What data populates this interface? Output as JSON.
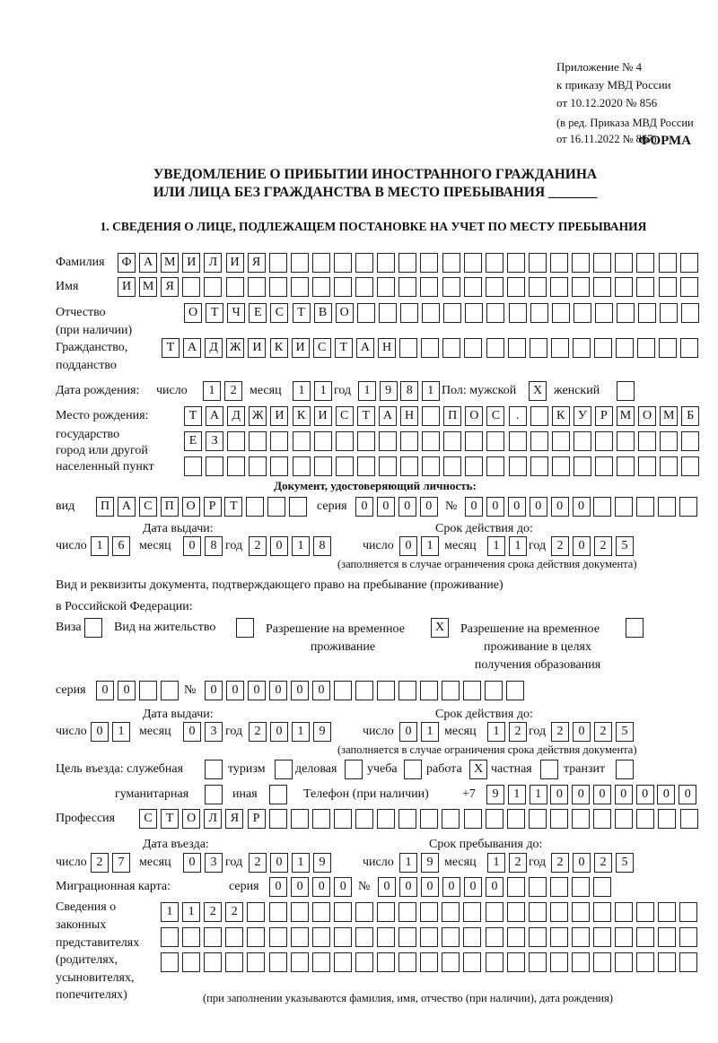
{
  "header": {
    "line1": "Приложение № 4",
    "line2": "к приказу МВД России",
    "line3": "от 10.12.2020 № 856",
    "line4": "(в ред. Приказа МВД России",
    "line5": "от 16.11.2022 № 867)",
    "forma": "ФОРМА"
  },
  "title": {
    "line1": "УВЕДОМЛЕНИЕ О ПРИБЫТИИ ИНОСТРАННОГО ГРАЖДАНИНА",
    "line2": "ИЛИ ЛИЦА БЕЗ ГРАЖДАНСТВА В МЕСТО ПРЕБЫВАНИЯ _______"
  },
  "section1": {
    "heading": "1. СВЕДЕНИЯ О ЛИЦЕ, ПОДЛЕЖАЩЕМ ПОСТАНОВКЕ НА УЧЕТ ПО МЕСТУ ПРЕБЫВАНИЯ"
  },
  "labels": {
    "surname": "Фамилия",
    "name": "Имя",
    "patronymic1": "Отчество",
    "patronymic2": "(при наличии)",
    "citizenship1": "Гражданство,",
    "citizenship2": "подданство",
    "birth_date": "Дата рождения:",
    "day": "число",
    "month": "месяц",
    "year": "год",
    "sex": "Пол: мужской",
    "female": "женский",
    "birthplace1": "Место рождения:",
    "birthplace2": "государство",
    "birthplace3": "город или другой",
    "birthplace4": "населенный пункт",
    "id_doc": "Документ, удостоверяющий личность:",
    "kind": "вид",
    "series": "серия",
    "number": "№",
    "issue_date": "Дата выдачи:",
    "valid_until": "Срок действия до:",
    "validity_note": "(заполняется в случае ограничения срока действия документа)",
    "stay_doc1": "Вид и реквизиты документа, подтверждающего право на пребывание (проживание)",
    "stay_doc2": "в Российской Федерации:",
    "visa": "Виза",
    "residence": "Вид на жительство",
    "trp1": "Разрешение на временное",
    "trp2": "проживание",
    "trpe1": "Разрешение на временное",
    "trpe2": "проживание в целях",
    "trpe3": "получения образования",
    "purpose": "Цель въезда: служебная",
    "tourism": "туризм",
    "business": "деловая",
    "study": "учеба",
    "work": "работа",
    "private": "частная",
    "transit": "транзит",
    "humanitarian": "гуманитарная",
    "other": "иная",
    "phone": "Телефон (при наличии)",
    "phone_prefix": "+7",
    "profession": "Профессия",
    "entry_date": "Дата въезда:",
    "stay_until": "Срок пребывания до:",
    "migration_card": "Миграционная карта:",
    "reps1": "Сведения о",
    "reps2": "законных",
    "reps3": "представителях",
    "reps4": "(родителях,",
    "reps5": "усыновителях,",
    "reps6": "попечителях)",
    "reps_note": "(при заполнении указываются фамилия, имя, отчество (при наличии), дата рождения)"
  },
  "person": {
    "surname": "ФАМИЛИЯ",
    "name": "ИМЯ",
    "patronymic": "ОТЧЕСТВО",
    "citizenship": "ТАДЖИКИСТАН",
    "birth_day": "12",
    "birth_month": "11",
    "birth_year": "1981",
    "male": "X",
    "female": "",
    "birthplace_line1": "ТАДЖИКИСТАН ПОС. КУРМОМБ",
    "birthplace_line2": "ЕЗ",
    "birthplace_line3": ""
  },
  "id_document": {
    "kind": "ПАСПОРТ",
    "series": "0000",
    "number": "000000",
    "issue_day": "16",
    "issue_month": "08",
    "issue_year": "2018",
    "valid_day": "01",
    "valid_month": "11",
    "valid_year": "2025"
  },
  "stay_document": {
    "visa": "",
    "residence": "",
    "trp": "X",
    "trpe": "",
    "series": "00",
    "number": "000000",
    "issue_day": "01",
    "issue_month": "03",
    "issue_year": "2019",
    "valid_day": "01",
    "valid_month": "12",
    "valid_year": "2025"
  },
  "purpose": {
    "official": "",
    "tourism": "",
    "business": "",
    "study": "",
    "work": "X",
    "private": "",
    "transit": "",
    "humanitarian": "",
    "other": ""
  },
  "phone": "9110000000",
  "profession": "СТОЛЯР",
  "entry": {
    "day": "27",
    "month": "03",
    "year": "2019",
    "stay_day": "19",
    "stay_month": "12",
    "stay_year": "2025"
  },
  "migration_card": {
    "series": "0000",
    "number": "000000"
  },
  "representatives": {
    "line1": "1122",
    "line2": "",
    "line3": ""
  }
}
